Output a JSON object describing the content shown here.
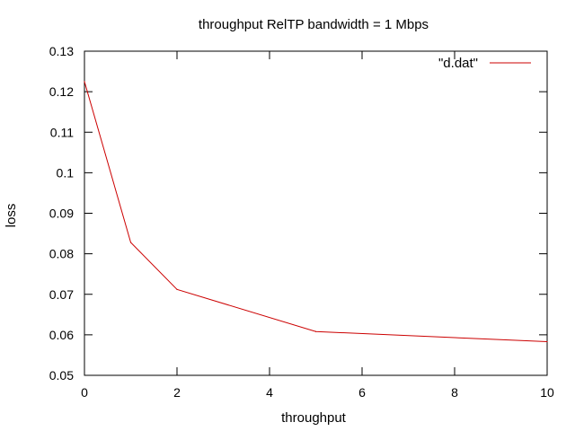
{
  "chart_data": {
    "type": "line",
    "title": "throughput RelTP bandwidth = 1 Mbps",
    "xlabel": "throughput",
    "ylabel": "loss",
    "xlim": [
      0,
      10
    ],
    "ylim": [
      0.05,
      0.13
    ],
    "xticks": [
      "0",
      "2",
      "4",
      "6",
      "8",
      "10"
    ],
    "yticks": [
      "0.05",
      "0.06",
      "0.07",
      "0.08",
      "0.09",
      "0.1",
      "0.11",
      "0.12",
      "0.13"
    ],
    "grid": false,
    "legend_position": "top-right",
    "series": [
      {
        "name": "\"d.dat\"",
        "color": "#cc0000",
        "x": [
          0,
          1,
          2,
          5,
          10
        ],
        "y": [
          0.1225,
          0.0828,
          0.0712,
          0.0608,
          0.0583
        ]
      }
    ]
  }
}
